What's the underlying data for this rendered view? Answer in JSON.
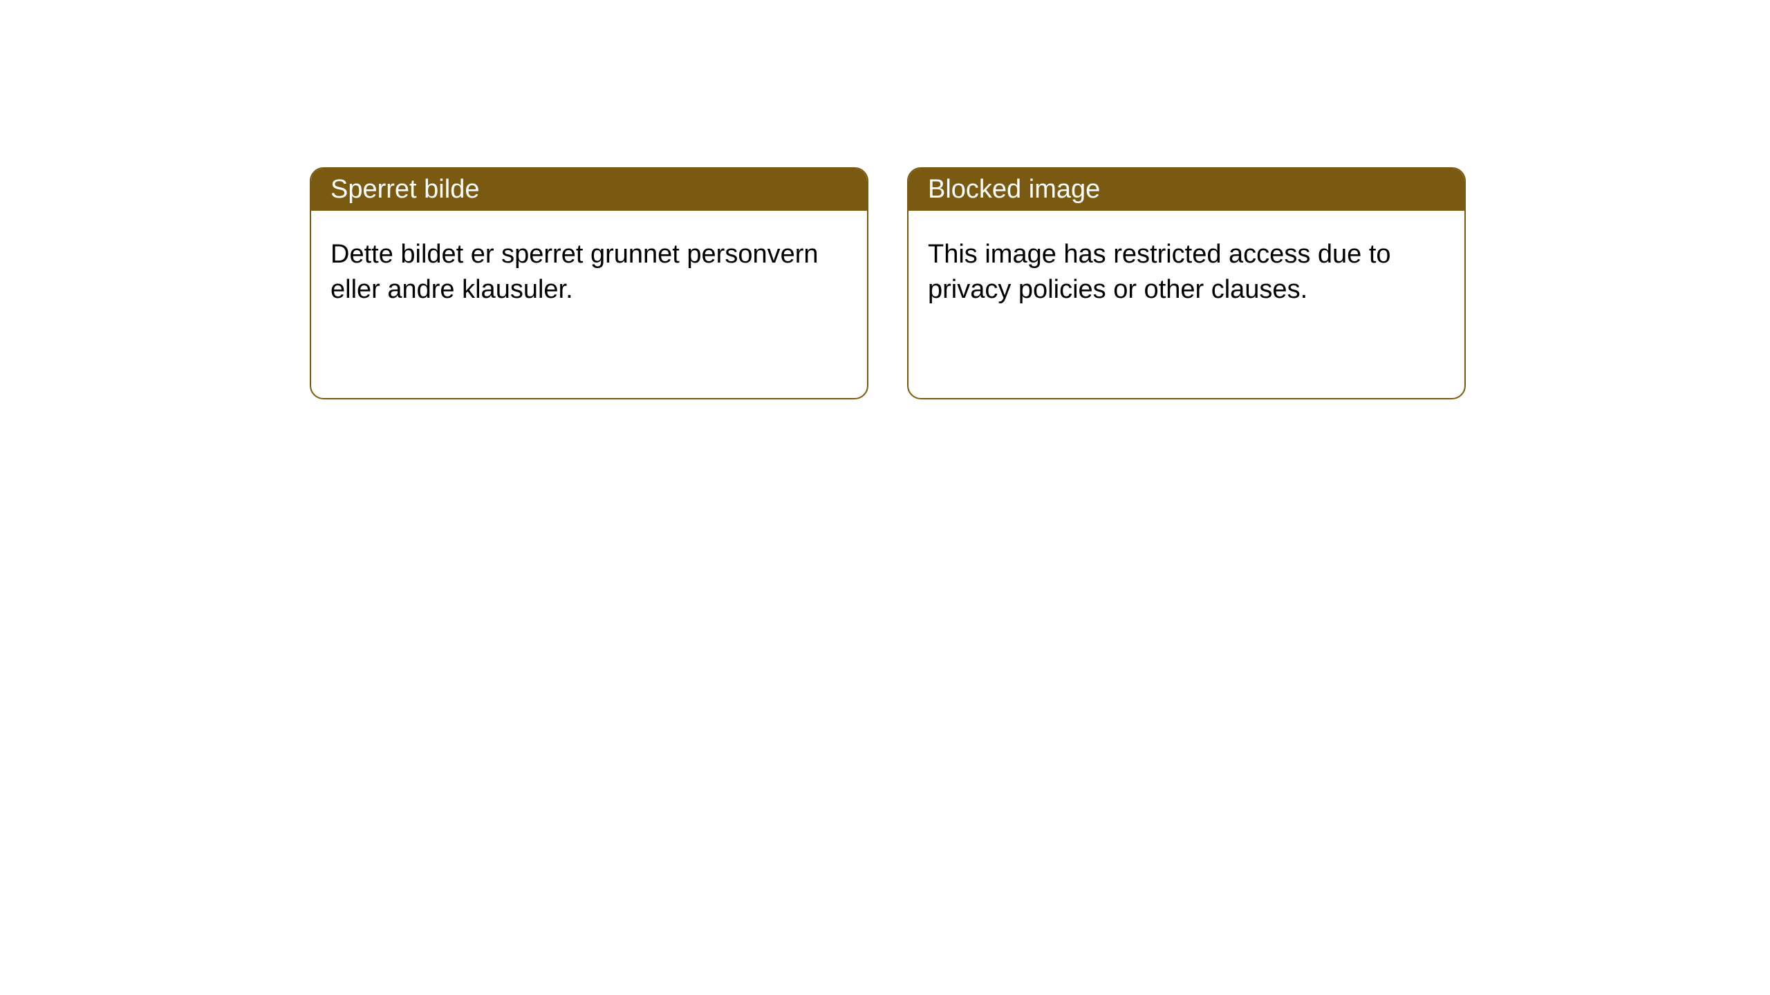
{
  "cards": [
    {
      "title": "Sperret bilde",
      "body": "Dette bildet er sperret grunnet personvern eller andre klausuler."
    },
    {
      "title": "Blocked image",
      "body": "This image has restricted access due to privacy policies or other clauses."
    }
  ],
  "style": {
    "header_background": "#7a5a10",
    "header_text_color": "#ffffff",
    "border_color": "#7a5a10",
    "card_background": "#ffffff",
    "body_text_color": "#000000",
    "border_radius": 20,
    "title_fontsize": 38,
    "body_fontsize": 38
  }
}
